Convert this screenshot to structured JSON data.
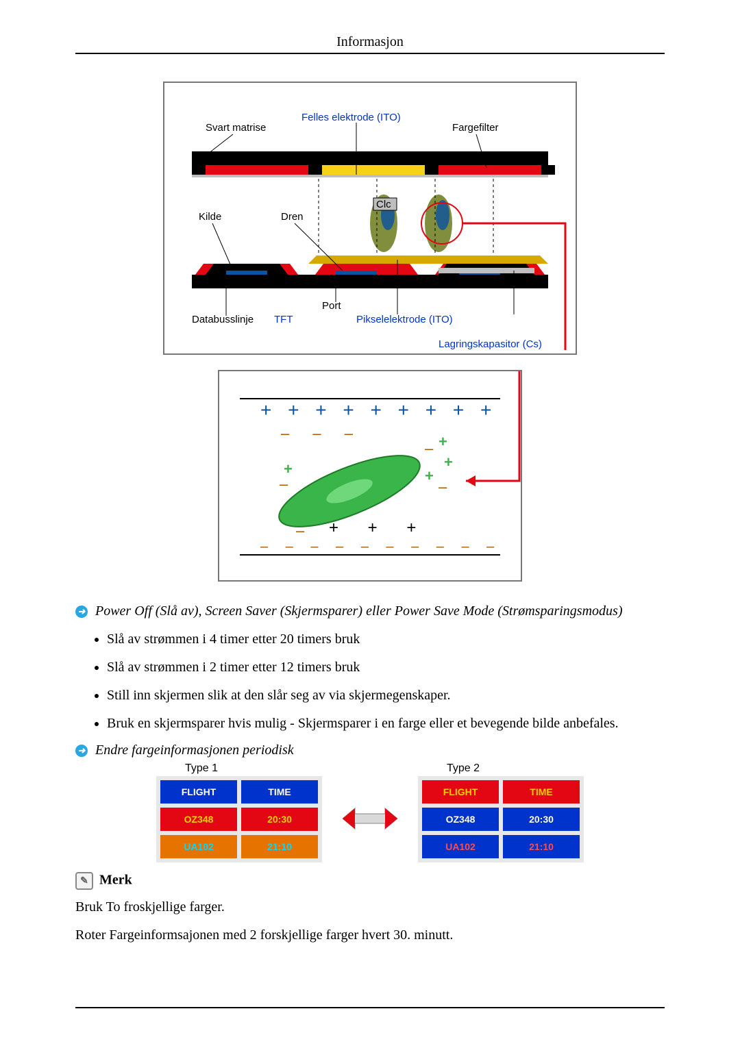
{
  "header": {
    "title": "Informasjon"
  },
  "diagram": {
    "labels": {
      "svart_matrise": "Svart matrise",
      "felles_elektrode": "Felles elektrode (ITO)",
      "fargefilter": "Fargefilter",
      "kilde": "Kilde",
      "dren": "Dren",
      "clc": "Clc",
      "port": "Port",
      "databusslinje": "Databusslinje",
      "tft": "TFT",
      "pikselelektrode": "Pikselelektrode (ITO)",
      "lagringskapasitor": "Lagringskapasitor (Cs)"
    },
    "colors": {
      "black": "#000000",
      "red": "#e30613",
      "yellow": "#f7d117",
      "gold": "#d6a800",
      "blue": "#0a53a1",
      "olive": "#6a7a1c",
      "grey": "#bfbfbf",
      "white": "#ffffff",
      "green_lc": "#39b54a",
      "brown": "#a85b00",
      "plus_color": "#0a53a1",
      "minus_color": "#7a3b00",
      "label_blue": "#0033cc",
      "border_grey": "#777777"
    },
    "plus_row": "+ + + + + + + + +",
    "minus_row": "– – – – – – – – – –"
  },
  "section_power": {
    "title": "Power Off (Slå av), Screen Saver (Skjermsparer) eller Power Save Mode (Strømsparingsmodus)",
    "bullets": [
      "Slå av strømmen i 4 timer etter 20 timers bruk",
      "Slå av strømmen i 2 timer etter 12 timers bruk",
      "Still inn skjermen slik at den slår seg av via skjermegenskaper.",
      "Bruk en skjermsparer hvis mulig - Skjermsparer i en farge eller et bevegende bilde anbefales."
    ]
  },
  "section_colors": {
    "title": "Endre fargeinformasjonen periodisk",
    "type1_label": "Type 1",
    "type2_label": "Type 2",
    "columns": [
      "FLIGHT",
      "TIME"
    ],
    "rows": [
      [
        "OZ348",
        "20:30"
      ],
      [
        "UA102",
        "21:10"
      ]
    ],
    "palette": {
      "type1": {
        "header_bg": "#0033cc",
        "header_fg": "#ffffff",
        "row1_bg": "#e30613",
        "row1_fg": "#ffcc00",
        "row2_bg": "#e67300",
        "row2_fg": "#00d8ff"
      },
      "type2": {
        "header_bg": "#e30613",
        "header_fg": "#ffcc00",
        "row1_bg": "#0033cc",
        "row1_fg": "#ffffff",
        "row2_bg": "#0033cc",
        "row2_fg": "#ff4d4d"
      },
      "arrow_fill": "#d9d9d9",
      "arrow_tip": "#e30613"
    }
  },
  "note": {
    "heading": "Merk",
    "p1": "Bruk To froskjellige farger.",
    "p2": "Roter Fargeinformsajonen med 2 forskjellige farger hvert 30. minutt."
  }
}
